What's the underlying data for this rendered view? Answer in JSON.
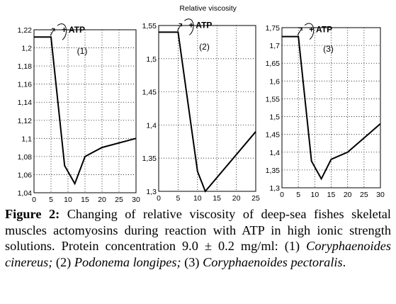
{
  "chart_data": [
    {
      "type": "line",
      "panel_label": "(1)",
      "annotation": "+ ATP",
      "top_label": "",
      "x": [
        0,
        5,
        9,
        12,
        15,
        20,
        30
      ],
      "values": [
        1.212,
        1.212,
        1.07,
        1.05,
        1.08,
        1.09,
        1.1
      ],
      "xlim": [
        0,
        30
      ],
      "ylim": [
        1.04,
        1.22
      ],
      "xticks": [
        "0",
        "5",
        "10",
        "15",
        "20",
        "25",
        "30"
      ],
      "xtick_values": [
        0,
        5,
        10,
        15,
        20,
        25,
        30
      ],
      "yticks": [
        "1,04",
        "1,06",
        "1,08",
        "1,1",
        "1,12",
        "1,14",
        "1,16",
        "1,18",
        "1,2",
        "1,22"
      ],
      "ytick_values": [
        1.04,
        1.06,
        1.08,
        1.1,
        1.12,
        1.14,
        1.16,
        1.18,
        1.2,
        1.22
      ],
      "grid": true
    },
    {
      "type": "line",
      "panel_label": "(2)",
      "annotation": "+ ATP",
      "top_label": "Relative viscosity",
      "x": [
        0,
        5,
        10,
        12,
        25
      ],
      "values": [
        1.54,
        1.54,
        1.33,
        1.3,
        1.39
      ],
      "xlim": [
        0,
        25
      ],
      "ylim": [
        1.3,
        1.55
      ],
      "xticks": [
        "0",
        "5",
        "10",
        "15",
        "20",
        "25"
      ],
      "xtick_values": [
        0,
        5,
        10,
        15,
        20,
        25
      ],
      "yticks": [
        "1,3",
        "1,35",
        "1,4",
        "1,45",
        "1,5",
        "1,55"
      ],
      "ytick_values": [
        1.3,
        1.35,
        1.4,
        1.45,
        1.5,
        1.55
      ],
      "grid": true
    },
    {
      "type": "line",
      "panel_label": "(3)",
      "annotation": "+ ATP",
      "top_label": "",
      "x": [
        0,
        5,
        9,
        12,
        15,
        20,
        30
      ],
      "values": [
        1.725,
        1.725,
        1.375,
        1.325,
        1.38,
        1.4,
        1.48
      ],
      "xlim": [
        0,
        30
      ],
      "ylim": [
        1.3,
        1.75
      ],
      "xticks": [
        "0",
        "5",
        "10",
        "15",
        "20",
        "25",
        "30"
      ],
      "xtick_values": [
        0,
        5,
        10,
        15,
        20,
        25,
        30
      ],
      "yticks": [
        "1,3",
        "1,35",
        "1,4",
        "1,45",
        "1,5",
        "1,55",
        "1,6",
        "1,65",
        "1,7",
        "1,75"
      ],
      "ytick_values": [
        1.3,
        1.35,
        1.4,
        1.45,
        1.5,
        1.55,
        1.6,
        1.65,
        1.7,
        1.75
      ],
      "grid": true
    }
  ],
  "caption": {
    "label": "Figure 2:",
    "text1": " Changing of relative viscosity of deep-sea fishes skeletal muscles actomyosins during reaction with ATP in high ionic strength solutions. Protein concentration 9.0 ± 0.2 mg/ml: (1) ",
    "species1": "Coryphaenoides cinereus;",
    "text2": " (2) ",
    "species2": "Podonema longipes;",
    "text3": " (3) ",
    "species3": "Coryphaenoides pectoralis",
    "text4": "."
  }
}
